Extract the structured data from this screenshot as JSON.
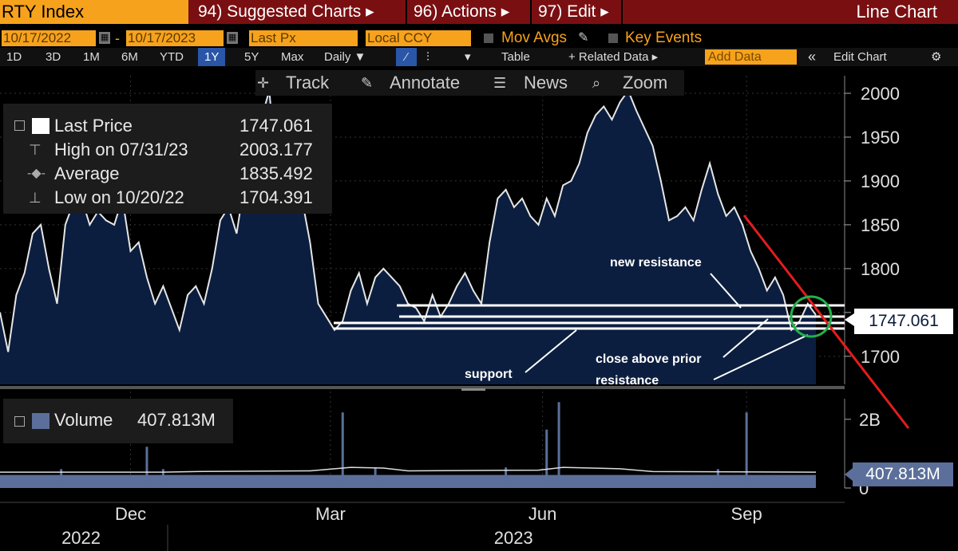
{
  "toolbar": {
    "ticker": "RTY Index",
    "menus": [
      "94) Suggested Charts ▸",
      "96) Actions ▸",
      "97) Edit ▸"
    ],
    "chart_type": "Line Chart",
    "date_from": "10/17/2022",
    "date_to": "10/17/2023",
    "field": "Last Px",
    "currency": "Local CCY",
    "mov_avgs": "Mov Avgs",
    "key_events": "Key Events",
    "periods": [
      "1D",
      "3D",
      "1M",
      "6M",
      "YTD",
      "1Y",
      "5Y",
      "Max"
    ],
    "selected_period": "1Y",
    "frequency": "Daily ▼",
    "table": "Table",
    "related_data": "+ Related Data ▸",
    "add_data": "Add Data",
    "edit_chart": "Edit Chart",
    "tools": [
      "Track",
      "Annotate",
      "News",
      "Zoom"
    ]
  },
  "legend": {
    "rows": [
      {
        "label": "Last Price",
        "value": "1747.061"
      },
      {
        "label": "High on 07/31/23",
        "value": "2003.177"
      },
      {
        "label": "Average",
        "value": "1835.492"
      },
      {
        "label": "Low on 10/20/22",
        "value": "1704.391"
      }
    ],
    "volume_label": "Volume",
    "volume_value": "407.813M"
  },
  "callouts": {
    "price": "1747.061",
    "volume": "407.813M"
  },
  "annotations": {
    "new_resistance": "new resistance",
    "support": "support",
    "close_above": "close above prior",
    "close_above2": "resistance"
  },
  "colors": {
    "area_fill": "#0c1e3f",
    "line": "#e6e6e6",
    "volume": "#5b6f9a",
    "trend_line": "#e41c1c",
    "circle": "#22b24c",
    "brand_orange": "#f7a21c"
  },
  "chart_data": {
    "type": "area",
    "price": {
      "yticks": [
        1700,
        1750,
        1800,
        1850,
        1900,
        1950,
        2000
      ],
      "ytick_labels": [
        "1700",
        "",
        "1800",
        "1850",
        "1900",
        "1950",
        "2000"
      ],
      "ylim": [
        1668,
        2020
      ],
      "t": [
        0,
        0.01,
        0.02,
        0.03,
        0.04,
        0.05,
        0.06,
        0.07,
        0.08,
        0.09,
        0.1,
        0.11,
        0.12,
        0.13,
        0.14,
        0.15,
        0.16,
        0.17,
        0.18,
        0.19,
        0.2,
        0.21,
        0.22,
        0.23,
        0.24,
        0.25,
        0.26,
        0.27,
        0.28,
        0.29,
        0.3,
        0.31,
        0.32,
        0.33,
        0.34,
        0.35,
        0.36,
        0.37,
        0.38,
        0.39,
        0.4,
        0.41,
        0.42,
        0.43,
        0.44,
        0.45,
        0.46,
        0.47,
        0.48,
        0.49,
        0.5,
        0.51,
        0.52,
        0.53,
        0.54,
        0.55,
        0.56,
        0.57,
        0.58,
        0.59,
        0.6,
        0.61,
        0.62,
        0.63,
        0.64,
        0.65,
        0.66,
        0.67,
        0.68,
        0.69,
        0.7,
        0.71,
        0.72,
        0.73,
        0.74,
        0.75,
        0.76,
        0.77,
        0.78,
        0.79,
        0.8,
        0.81,
        0.82,
        0.83,
        0.84,
        0.85,
        0.86,
        0.87,
        0.88,
        0.89,
        0.9,
        0.91,
        0.92,
        0.93,
        0.94,
        0.95,
        0.96,
        0.97,
        0.98,
        0.99,
        1.0
      ],
      "y": [
        1750,
        1705,
        1770,
        1795,
        1840,
        1850,
        1800,
        1760,
        1850,
        1875,
        1880,
        1850,
        1865,
        1855,
        1850,
        1880,
        1820,
        1830,
        1790,
        1760,
        1780,
        1755,
        1730,
        1770,
        1780,
        1760,
        1800,
        1855,
        1870,
        1840,
        1900,
        1935,
        1970,
        2003,
        1900,
        1910,
        1890,
        1880,
        1830,
        1760,
        1745,
        1730,
        1740,
        1775,
        1795,
        1760,
        1790,
        1800,
        1790,
        1780,
        1760,
        1755,
        1740,
        1770,
        1745,
        1760,
        1780,
        1795,
        1775,
        1760,
        1830,
        1880,
        1890,
        1870,
        1880,
        1860,
        1850,
        1880,
        1860,
        1895,
        1900,
        1920,
        1955,
        1975,
        1985,
        1970,
        1990,
        2003,
        1980,
        1960,
        1940,
        1900,
        1855,
        1860,
        1870,
        1855,
        1890,
        1920,
        1885,
        1860,
        1870,
        1850,
        1820,
        1800,
        1775,
        1790,
        1770,
        1730,
        1740,
        1760,
        1747
      ]
    },
    "volume": {
      "yticks": [
        0,
        2
      ],
      "ytick_labels": [
        "0",
        "2B"
      ],
      "ylim": [
        0,
        2.6
      ],
      "base": 0.38,
      "spikes": [
        {
          "t": 0.075,
          "v": 0.55
        },
        {
          "t": 0.18,
          "v": 1.2
        },
        {
          "t": 0.2,
          "v": 0.55
        },
        {
          "t": 0.42,
          "v": 2.2
        },
        {
          "t": 0.46,
          "v": 0.6
        },
        {
          "t": 0.62,
          "v": 0.6
        },
        {
          "t": 0.67,
          "v": 1.7
        },
        {
          "t": 0.685,
          "v": 2.5
        },
        {
          "t": 0.88,
          "v": 0.55
        },
        {
          "t": 0.915,
          "v": 2.2
        }
      ]
    },
    "x_labels": [
      {
        "label": "Dec",
        "t": 0.16
      },
      {
        "label": "Mar",
        "t": 0.405
      },
      {
        "label": "Jun",
        "t": 0.665
      },
      {
        "label": "Sep",
        "t": 0.915
      }
    ],
    "year_labels": [
      {
        "label": "2022",
        "t": 0.07
      },
      {
        "label": "2023",
        "t": 0.6
      }
    ]
  }
}
